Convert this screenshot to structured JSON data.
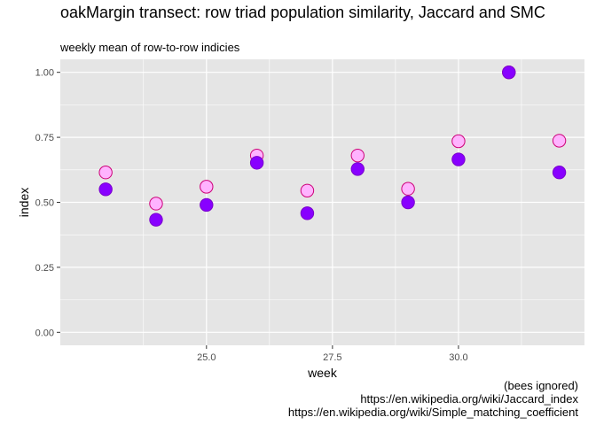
{
  "title": "oakMargin transect: row triad population similarity, Jaccard and SMC",
  "subtitle": "weekly mean of row-to-row indicies",
  "caption": [
    "(bees ignored)",
    "https://en.wikipedia.org/wiki/Jaccard_index",
    "https://en.wikipedia.org/wiki/Simple_matching_coefficient"
  ],
  "colors": {
    "panel_background": "#e5e5e5",
    "grid": "#ffffff",
    "smc_fill": "#ffb3ff",
    "smc_stroke": "#cc0077",
    "jaccard_fill": "#8800ff",
    "jaccard_stroke": "#7a00cc"
  },
  "chart_data": {
    "type": "scatter",
    "title": "oakMargin transect: row triad population similarity, Jaccard and SMC",
    "subtitle": "weekly mean of row-to-row indicies",
    "xlabel": "week",
    "ylabel": "index",
    "xlim": [
      22.1,
      32.5
    ],
    "ylim": [
      -0.05,
      1.05
    ],
    "x_ticks": [
      25.0,
      27.5,
      30.0
    ],
    "x_tick_labels": [
      "25.0",
      "27.5",
      "30.0"
    ],
    "y_ticks": [
      0.0,
      0.25,
      0.5,
      0.75,
      1.0
    ],
    "y_tick_labels": [
      "0.00",
      "0.25",
      "0.50",
      "0.75",
      "1.00"
    ],
    "grid": true,
    "legend": "none",
    "series": [
      {
        "x": [
          23,
          24,
          25,
          26,
          27,
          28,
          29,
          30,
          31,
          32
        ],
        "y": [
          0.615,
          0.495,
          0.56,
          0.68,
          0.545,
          0.68,
          0.552,
          0.735,
          1.0,
          0.737
        ]
      },
      {
        "x": [
          23,
          24,
          25,
          26,
          27,
          28,
          29,
          30,
          31,
          32
        ],
        "y": [
          0.55,
          0.433,
          0.49,
          0.652,
          0.458,
          0.628,
          0.5,
          0.665,
          1.0,
          0.615
        ]
      }
    ]
  }
}
